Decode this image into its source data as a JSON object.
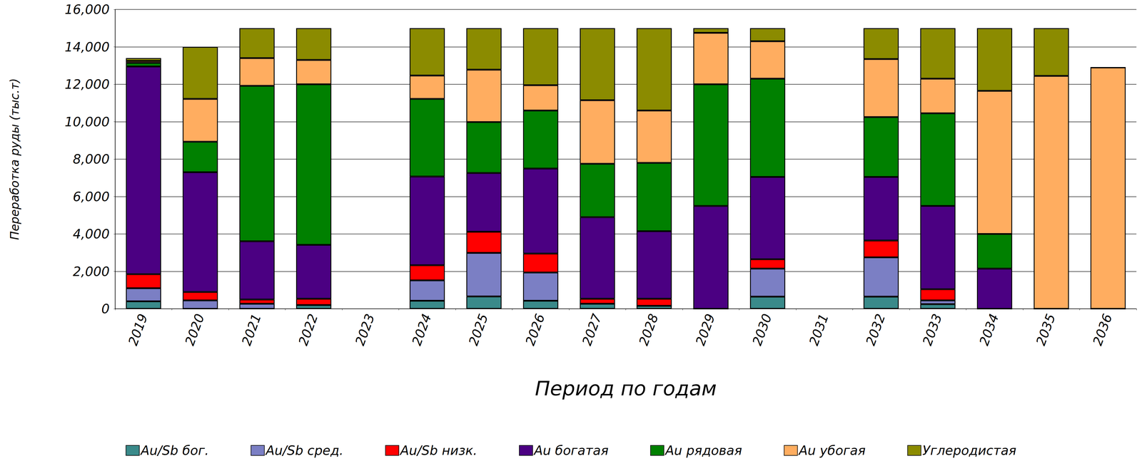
{
  "chart_data": {
    "type": "bar",
    "stacked": true,
    "grid": true,
    "legend": "bottom",
    "y_label": "Переработка руды (тыс.т)",
    "x_label": "Период по годам",
    "categories": [
      "2019",
      "2020",
      "2021",
      "2022",
      "2023",
      "2024",
      "2025",
      "2026",
      "2027",
      "2028",
      "2029",
      "2030",
      "2031",
      "2032",
      "2033",
      "2034",
      "2035",
      "2036"
    ],
    "ylim": [
      0,
      16000
    ],
    "yticks": [
      0,
      {
        "value": 2000,
        "label": "2,000"
      },
      {
        "value": 4000,
        "label": "4,000"
      },
      {
        "value": 6000,
        "label": "6,000"
      },
      {
        "value": 8000,
        "label": "8,000"
      },
      {
        "value": 10000,
        "label": "10,000"
      },
      {
        "value": 12000,
        "label": "12,000"
      },
      {
        "value": 14000,
        "label": "14,000"
      },
      {
        "value": 16000,
        "label": "16,000"
      }
    ],
    "series": [
      {
        "name": "Au/Sb бог.",
        "color": "#3a8a8a",
        "values": [
          400,
          0,
          0,
          200,
          null,
          430,
          660,
          430,
          270,
          160,
          0,
          650,
          null,
          650,
          250,
          0,
          0,
          0
        ]
      },
      {
        "name": "Au/Sb сред.",
        "color": "#7b7fc4",
        "values": [
          700,
          450,
          270,
          0,
          null,
          1090,
          2330,
          1510,
          0,
          0,
          0,
          1500,
          null,
          2100,
          200,
          0,
          0,
          0
        ]
      },
      {
        "name": "Au/Sb низк.",
        "color": "#ff0000",
        "values": [
          750,
          450,
          230,
          340,
          null,
          810,
          1130,
          1010,
          270,
          380,
          0,
          500,
          null,
          900,
          600,
          0,
          0,
          0
        ]
      },
      {
        "name": "Au богатая",
        "color": "#4b0082",
        "values": [
          11100,
          6400,
          3110,
          2880,
          null,
          4740,
          3140,
          4550,
          4360,
          3610,
          5500,
          4400,
          null,
          3400,
          4450,
          2150,
          0,
          0
        ]
      },
      {
        "name": "Au рядовая",
        "color": "#008000",
        "values": [
          200,
          1630,
          8310,
          8580,
          null,
          4150,
          2720,
          3100,
          2850,
          3650,
          6500,
          5250,
          null,
          3200,
          4950,
          1850,
          0,
          0
        ]
      },
      {
        "name": "Au убогая",
        "color": "#ffad60",
        "values": [
          100,
          2290,
          1480,
          1300,
          null,
          1250,
          2800,
          1350,
          3400,
          2800,
          2750,
          2000,
          null,
          3100,
          1850,
          7650,
          12450,
          12900
        ]
      },
      {
        "name": "Углеродистая",
        "color": "#8b8b00",
        "values": [
          150,
          2780,
          1600,
          1700,
          null,
          2530,
          2220,
          3050,
          3850,
          4400,
          250,
          700,
          null,
          1650,
          2700,
          3350,
          2550,
          0
        ]
      }
    ]
  }
}
